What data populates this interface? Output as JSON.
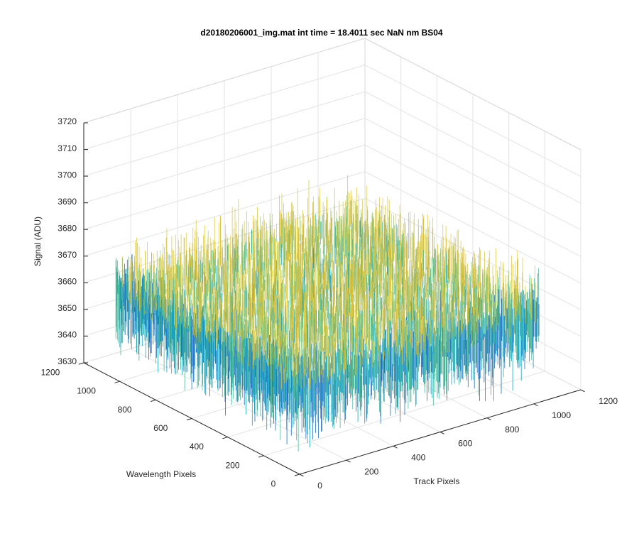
{
  "chart_data": {
    "type": "surface",
    "title": "d20180206001_img.mat int time = 18.4011 sec  NaN nm BS04",
    "xlabel": "Track Pixels",
    "ylabel": "Wavelength Pixels",
    "zlabel": "Signal (ADU)",
    "xlim": [
      0,
      1200
    ],
    "ylim": [
      0,
      1200
    ],
    "zlim": [
      3630,
      3720
    ],
    "xticks": [
      "0",
      "200",
      "400",
      "600",
      "800",
      "1000",
      "1200"
    ],
    "yticks": [
      "0",
      "200",
      "400",
      "600",
      "800",
      "1000",
      "1200"
    ],
    "zticks": [
      "3630",
      "3640",
      "3650",
      "3660",
      "3670",
      "3680",
      "3690",
      "3700",
      "3710",
      "3720"
    ],
    "data_extent": {
      "track_pixels": [
        0,
        1024
      ],
      "wavelength_pixels": [
        0,
        1024
      ]
    },
    "signal_range": {
      "mean": 3665,
      "min": 3625,
      "max": 3712
    },
    "grid": true,
    "colormap": [
      "#1f6fc5",
      "#1aa4c2",
      "#46b89a",
      "#9cc36a",
      "#d8c23a"
    ]
  }
}
